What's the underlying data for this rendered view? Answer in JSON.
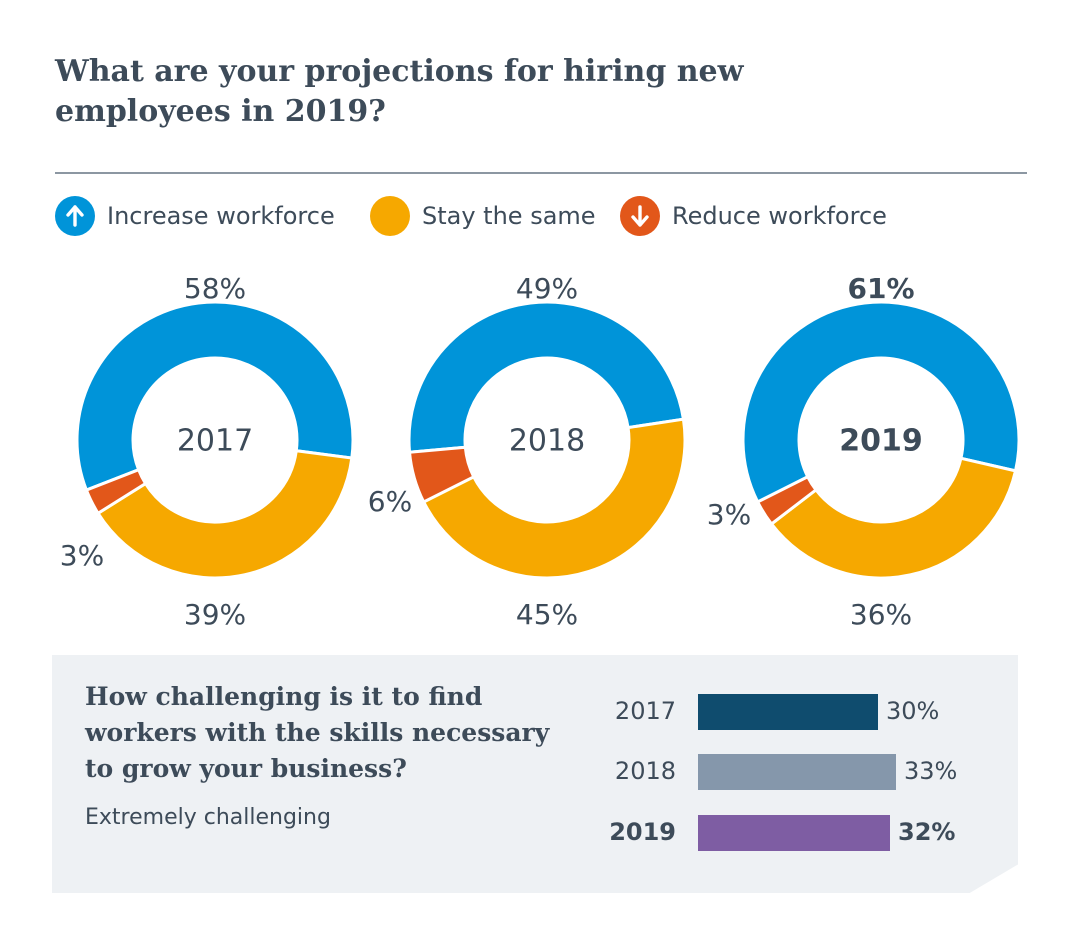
{
  "title": "What are your projections for hiring new employees in 2019?",
  "legend": [
    {
      "label": "Increase workforce",
      "color": "#0094d9",
      "icon": "arrow-up-icon"
    },
    {
      "label": "Stay the same",
      "color": "#f6a800",
      "icon": "circle"
    },
    {
      "label": "Reduce workforce",
      "color": "#e2571a",
      "icon": "arrow-down-icon"
    }
  ],
  "chart_data": [
    {
      "type": "donut",
      "title": "What are your projections for hiring new employees in 2019?",
      "series_names": [
        "Increase workforce",
        "Stay the same",
        "Reduce workforce"
      ],
      "colors": [
        "#0094d9",
        "#f6a800",
        "#e2571a"
      ],
      "donuts": [
        {
          "year": "2017",
          "bold": false,
          "values": [
            58,
            39,
            3
          ],
          "labels": [
            "58%",
            "39%",
            "3%"
          ]
        },
        {
          "year": "2018",
          "bold": false,
          "values": [
            49,
            45,
            6
          ],
          "labels": [
            "49%",
            "45%",
            "6%"
          ]
        },
        {
          "year": "2019",
          "bold": true,
          "values": [
            61,
            36,
            3
          ],
          "labels": [
            "61%",
            "36%",
            "3%"
          ]
        }
      ]
    },
    {
      "type": "bar",
      "orientation": "horizontal",
      "title": "How challenging is it to find workers with the skills necessary to grow your business?",
      "subtitle": "Extremely challenging",
      "categories": [
        "2017",
        "2018",
        "2019"
      ],
      "values": [
        30,
        33,
        32
      ],
      "labels": [
        "30%",
        "33%",
        "32%"
      ],
      "colors": [
        "#0f4c6e",
        "#8597ab",
        "#7e5da3"
      ],
      "bold": [
        false,
        false,
        true
      ]
    }
  ]
}
